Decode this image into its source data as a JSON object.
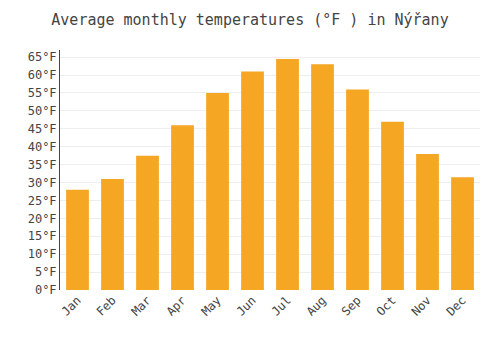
{
  "chart_data": {
    "type": "bar",
    "title": "Average monthly temperatures (°F ) in Nýřany",
    "categories": [
      "Jan",
      "Feb",
      "Mar",
      "Apr",
      "May",
      "Jun",
      "Jul",
      "Aug",
      "Sep",
      "Oct",
      "Nov",
      "Dec"
    ],
    "values": [
      28.0,
      31.0,
      37.5,
      46.0,
      55.0,
      61.0,
      64.5,
      63.0,
      56.0,
      47.0,
      38.0,
      31.5
    ],
    "color": "#F5A623",
    "ylim": [
      0,
      67
    ],
    "yticks": [
      {
        "value": 0,
        "label": "0°F"
      },
      {
        "value": 5,
        "label": "5°F"
      },
      {
        "value": 10,
        "label": "10°F"
      },
      {
        "value": 15,
        "label": "15°F"
      },
      {
        "value": 20,
        "label": "20°F"
      },
      {
        "value": 25,
        "label": "25°F"
      },
      {
        "value": 30,
        "label": "30°F"
      },
      {
        "value": 35,
        "label": "35°F"
      },
      {
        "value": 40,
        "label": "40°F"
      },
      {
        "value": 45,
        "label": "45°F"
      },
      {
        "value": 50,
        "label": "50°F"
      },
      {
        "value": 55,
        "label": "55°F"
      },
      {
        "value": 60,
        "label": "60°F"
      },
      {
        "value": 65,
        "label": "65°F"
      }
    ],
    "grid": true
  }
}
